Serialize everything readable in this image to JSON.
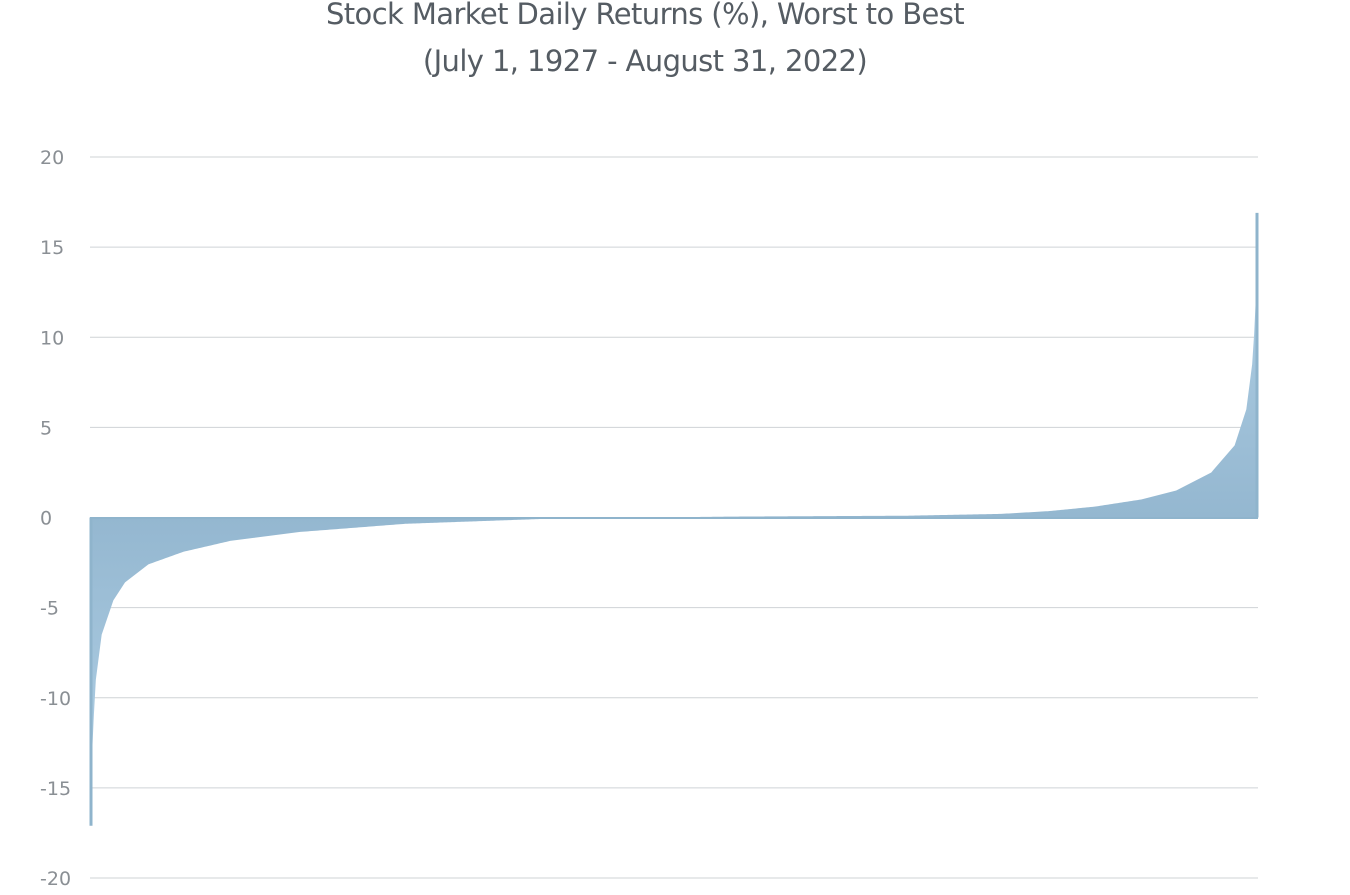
{
  "chart_data": {
    "type": "area",
    "title": "Stock Market Daily Returns (%), Worst to Best",
    "subtitle": "(July 1, 1927 - August 31, 2022)",
    "xlabel": "",
    "ylabel": "",
    "ylim": [
      -20,
      20
    ],
    "yticks": [
      20,
      15,
      10,
      5,
      0,
      -5,
      -10,
      -15,
      -20
    ],
    "ytick_labels": [
      "20",
      "15",
      "10",
      "5",
      "0",
      "-5",
      "-10",
      "-15",
      "-20"
    ],
    "grid": true,
    "sorted": "ascending",
    "series": [
      {
        "x": [
          0,
          0.002,
          0.005,
          0.01,
          0.02,
          0.03,
          0.05,
          0.08,
          0.12,
          0.18,
          0.27,
          0.4,
          0.55,
          0.7,
          0.78,
          0.82,
          0.86,
          0.9,
          0.93,
          0.96,
          0.98,
          0.99,
          0.995,
          0.998,
          1.0
        ],
        "values": [
          -17.1,
          -12.5,
          -9.0,
          -6.5,
          -4.6,
          -3.6,
          -2.6,
          -1.9,
          -1.3,
          -0.8,
          -0.35,
          -0.05,
          0.05,
          0.1,
          0.2,
          0.35,
          0.6,
          1.0,
          1.5,
          2.5,
          4.0,
          6.0,
          8.5,
          11.5,
          16.9
        ]
      }
    ],
    "colors": {
      "fill_dark": "#94b7d0",
      "fill_light": "#b4d3e8",
      "edge": "#8fb4cc"
    }
  }
}
